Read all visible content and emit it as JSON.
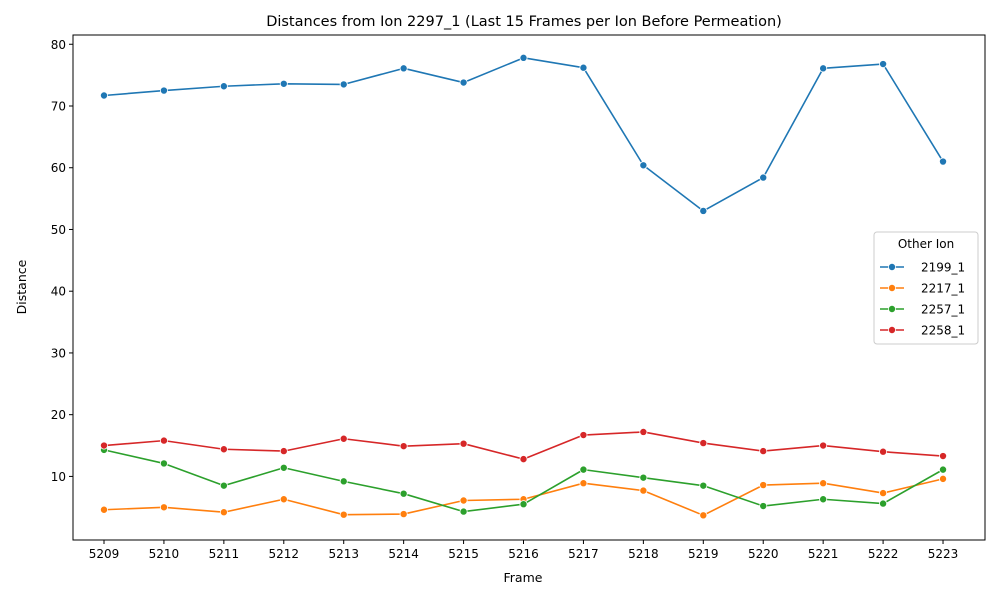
{
  "chart_data": {
    "type": "line",
    "title": "Distances from Ion 2297_1 (Last 15 Frames per Ion Before Permeation)",
    "xlabel": "Frame",
    "ylabel": "Distance",
    "categories": [
      "5209",
      "5210",
      "5211",
      "5212",
      "5213",
      "5214",
      "5215",
      "5216",
      "5217",
      "5218",
      "5219",
      "5220",
      "5221",
      "5222",
      "5223"
    ],
    "yticks": [
      10,
      20,
      30,
      40,
      50,
      60,
      70,
      80
    ],
    "ylim": [
      -0.3,
      81.5
    ],
    "grid": false,
    "legend": {
      "title": "Other Ion",
      "placement": "center-right"
    },
    "series": [
      {
        "name": "2199_1",
        "color": "#1f77b4",
        "values": [
          71.7,
          72.5,
          73.2,
          73.6,
          73.5,
          76.1,
          73.8,
          77.8,
          76.2,
          60.4,
          53.0,
          58.4,
          76.1,
          76.8,
          61.0
        ]
      },
      {
        "name": "2217_1",
        "color": "#ff7f0e",
        "values": [
          4.6,
          5.0,
          4.2,
          6.3,
          3.8,
          3.9,
          6.1,
          6.3,
          8.9,
          7.7,
          3.7,
          8.6,
          8.9,
          7.3,
          9.6
        ]
      },
      {
        "name": "2257_1",
        "color": "#2ca02c",
        "values": [
          14.3,
          12.1,
          8.5,
          11.4,
          9.2,
          7.2,
          4.3,
          5.5,
          11.1,
          9.8,
          8.5,
          5.2,
          6.3,
          5.6,
          11.1
        ]
      },
      {
        "name": "2258_1",
        "color": "#d62728",
        "values": [
          15.0,
          15.8,
          14.4,
          14.1,
          16.1,
          14.9,
          15.3,
          12.8,
          16.7,
          17.2,
          15.4,
          14.1,
          15.0,
          14.0,
          13.3
        ]
      }
    ]
  }
}
